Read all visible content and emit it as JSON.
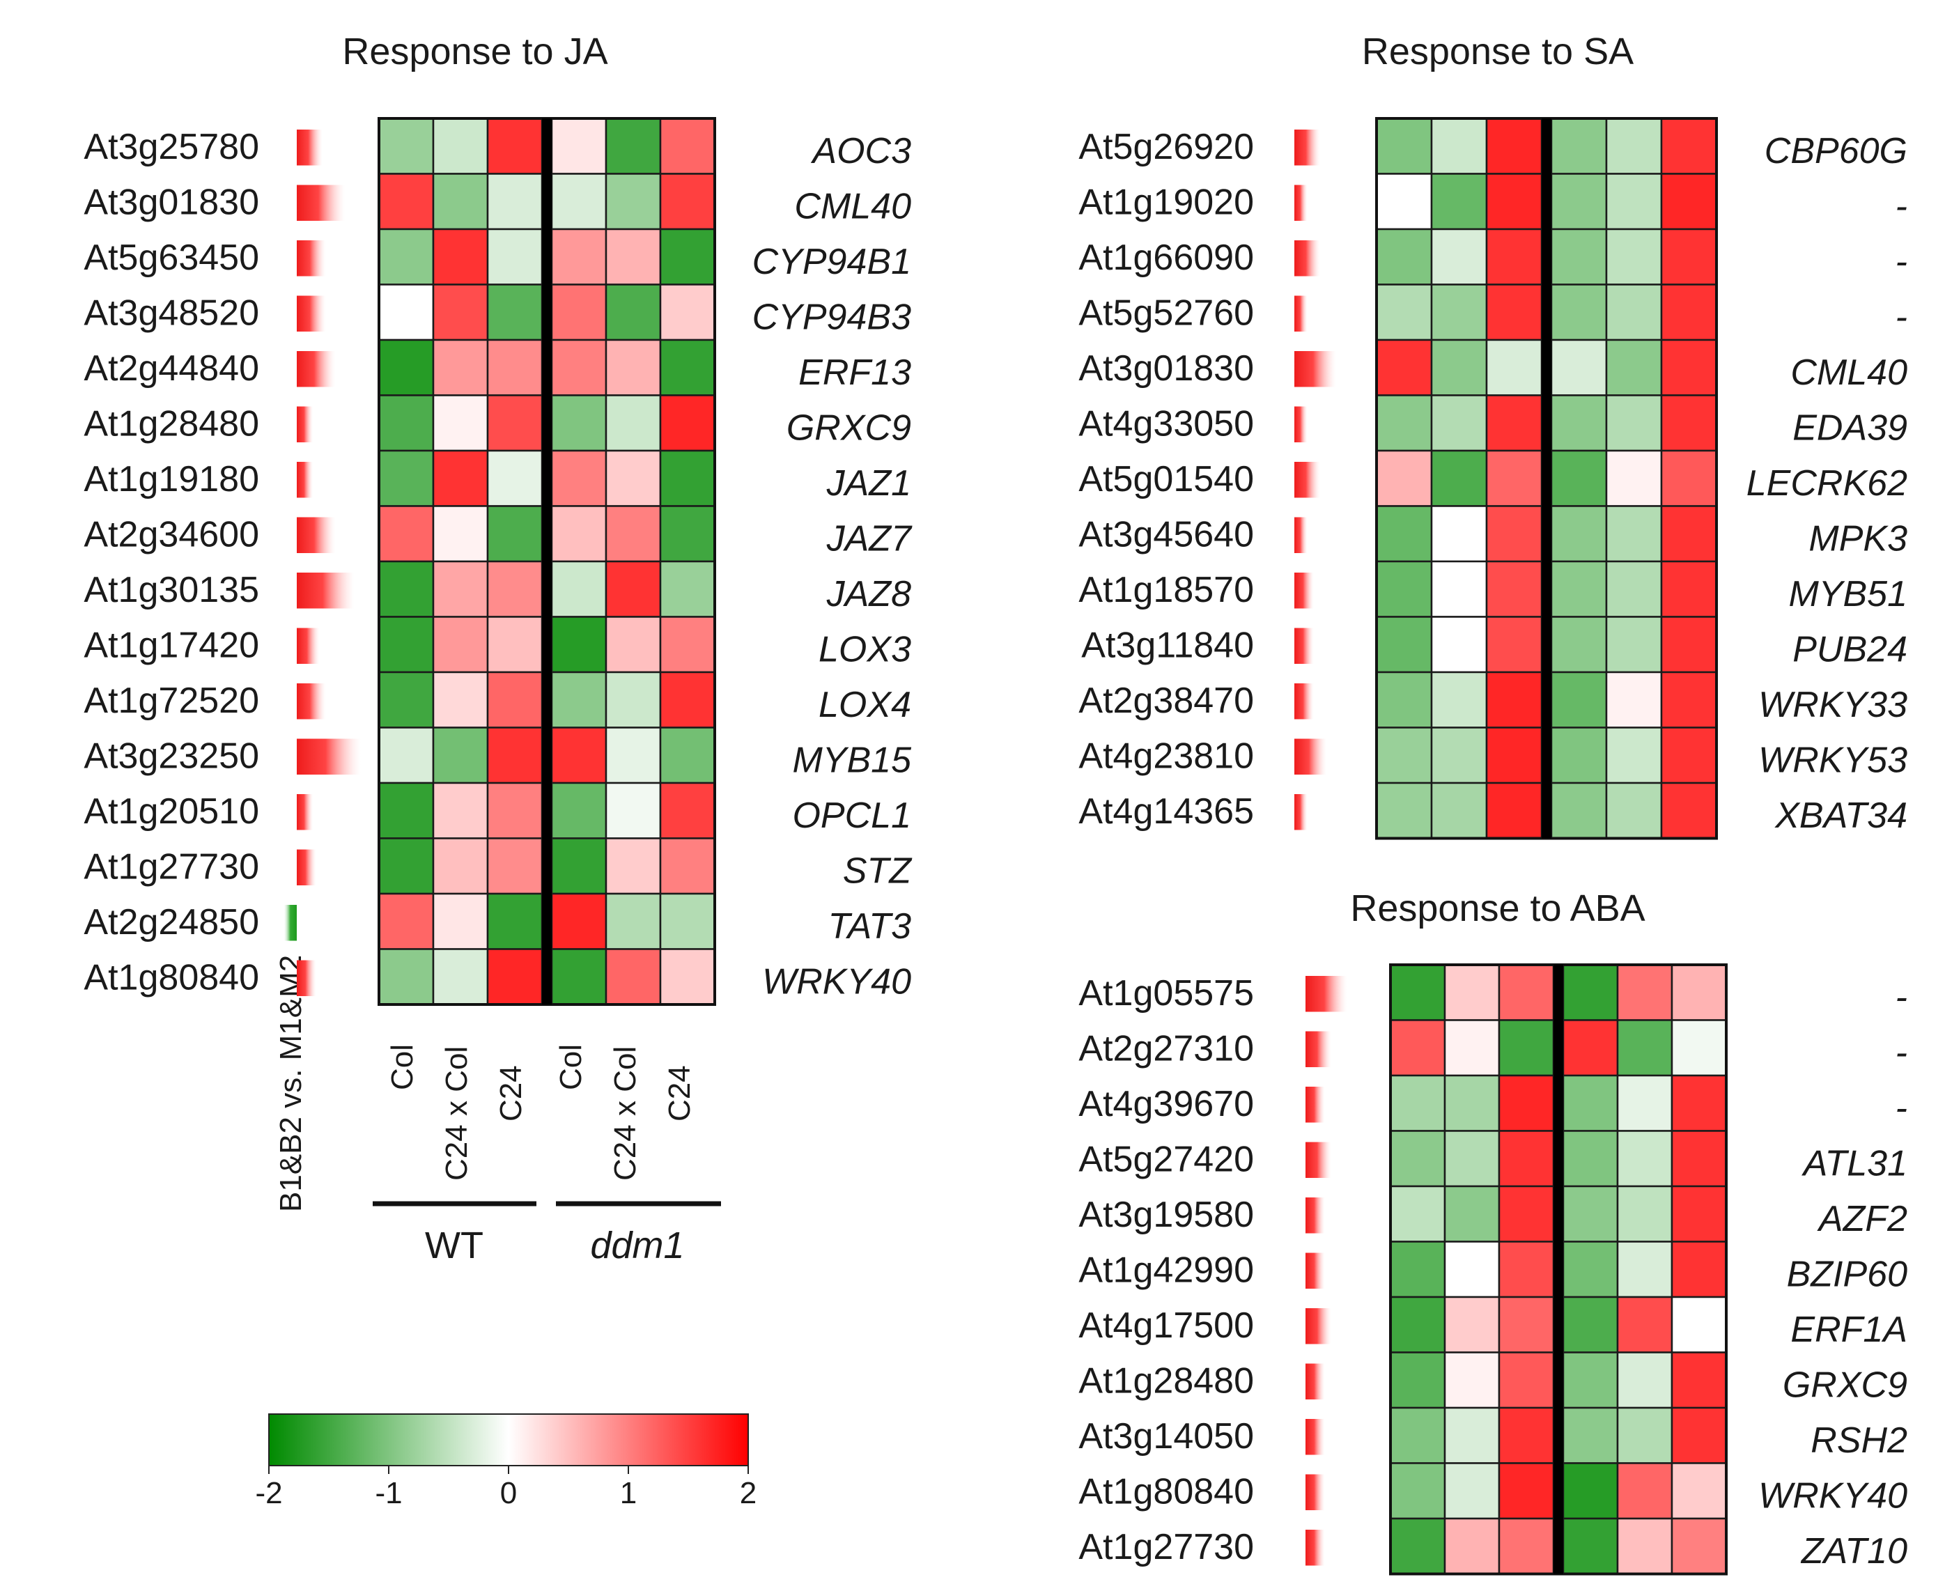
{
  "chart_data": [
    {
      "type": "heatmap",
      "title": "Response to JA",
      "columns": [
        "Col",
        "C24 x Col",
        "C24",
        "Col",
        "C24 x Col",
        "C24"
      ],
      "column_groups": [
        {
          "label": "WT",
          "italic": false,
          "columns": [
            0,
            1,
            2
          ]
        },
        {
          "label": "ddm1",
          "italic": true,
          "columns": [
            3,
            4,
            5
          ]
        }
      ],
      "side_bar_label": "B1&B2 vs. M1&M2",
      "rows": [
        {
          "locus": "At3g25780",
          "gene": "AOC3",
          "bar": 0.8,
          "values": [
            -0.8,
            -0.4,
            1.6,
            0.2,
            -1.5,
            1.2
          ]
        },
        {
          "locus": "At3g01830",
          "gene": "CML40",
          "bar": 1.5,
          "values": [
            1.5,
            -0.9,
            -0.3,
            -0.3,
            -0.8,
            1.5
          ]
        },
        {
          "locus": "At5g63450",
          "gene": "CYP94B1",
          "bar": 0.9,
          "values": [
            -0.9,
            1.6,
            -0.3,
            0.8,
            0.6,
            -1.6
          ]
        },
        {
          "locus": "At3g48520",
          "gene": "CYP94B3",
          "bar": 0.9,
          "values": [
            0.0,
            1.4,
            -1.3,
            1.1,
            -1.4,
            0.4
          ]
        },
        {
          "locus": "At2g44840",
          "gene": "ERF13",
          "bar": 1.2,
          "values": [
            -1.7,
            0.8,
            0.9,
            1.0,
            0.6,
            -1.6
          ]
        },
        {
          "locus": "At1g28480",
          "gene": "GRXC9",
          "bar": 0.5,
          "values": [
            -1.4,
            0.1,
            1.4,
            -1.0,
            -0.4,
            1.7
          ]
        },
        {
          "locus": "At1g19180",
          "gene": "JAZ1",
          "bar": 0.5,
          "values": [
            -1.3,
            1.6,
            -0.2,
            1.0,
            0.4,
            -1.6
          ]
        },
        {
          "locus": "At2g34600",
          "gene": "JAZ7",
          "bar": 1.2,
          "values": [
            1.2,
            0.1,
            -1.4,
            0.5,
            1.0,
            -1.5
          ]
        },
        {
          "locus": "At1g30135",
          "gene": "JAZ8",
          "bar": 1.8,
          "values": [
            -1.6,
            0.7,
            0.9,
            -0.4,
            1.6,
            -0.8
          ]
        },
        {
          "locus": "At1g17420",
          "gene": "LOX3",
          "bar": 0.7,
          "values": [
            -1.6,
            0.8,
            0.5,
            -1.7,
            0.5,
            1.0
          ]
        },
        {
          "locus": "At1g72520",
          "gene": "LOX4",
          "bar": 0.9,
          "values": [
            -1.5,
            0.3,
            1.2,
            -0.9,
            -0.4,
            1.6
          ]
        },
        {
          "locus": "At3g23250",
          "gene": "MYB15",
          "bar": 2.0,
          "values": [
            -0.3,
            -1.1,
            1.6,
            1.6,
            -0.2,
            -1.1
          ]
        },
        {
          "locus": "At1g20510",
          "gene": "OPCL1",
          "bar": 0.5,
          "values": [
            -1.6,
            0.4,
            1.0,
            -1.2,
            -0.1,
            1.5
          ]
        },
        {
          "locus": "At1g27730",
          "gene": "STZ",
          "bar": 0.6,
          "values": [
            -1.6,
            0.5,
            0.9,
            -1.6,
            0.4,
            1.0
          ]
        },
        {
          "locus": "At2g24850",
          "gene": "TAT3",
          "bar": -0.4,
          "values": [
            1.2,
            0.2,
            -1.6,
            1.7,
            -0.6,
            -0.6
          ]
        },
        {
          "locus": "At1g80840",
          "gene": "WRKY40",
          "bar": 0.6,
          "values": [
            -0.9,
            -0.3,
            1.7,
            -1.6,
            1.2,
            0.4
          ]
        }
      ]
    },
    {
      "type": "heatmap",
      "title": "Response to SA",
      "rows": [
        {
          "locus": "At5g26920",
          "gene": "CBP60G",
          "bar": 0.8,
          "values": [
            -1.0,
            -0.4,
            1.7,
            -0.9,
            -0.5,
            1.6
          ]
        },
        {
          "locus": "At1g19020",
          "gene": "-",
          "bar": 0.4,
          "values": [
            0.0,
            -1.2,
            1.7,
            -0.9,
            -0.5,
            1.7
          ]
        },
        {
          "locus": "At1g66090",
          "gene": "-",
          "bar": 0.8,
          "values": [
            -1.0,
            -0.3,
            1.6,
            -0.9,
            -0.5,
            1.6
          ]
        },
        {
          "locus": "At5g52760",
          "gene": "-",
          "bar": 0.4,
          "values": [
            -0.6,
            -0.8,
            1.6,
            -0.9,
            -0.6,
            1.6
          ]
        },
        {
          "locus": "At3g01830",
          "gene": "CML40",
          "bar": 1.3,
          "values": [
            1.6,
            -0.9,
            -0.3,
            -0.3,
            -0.9,
            1.6
          ]
        },
        {
          "locus": "At4g33050",
          "gene": "EDA39",
          "bar": 0.4,
          "values": [
            -0.9,
            -0.6,
            1.6,
            -0.9,
            -0.6,
            1.6
          ]
        },
        {
          "locus": "At5g01540",
          "gene": "LECRK62",
          "bar": 0.8,
          "values": [
            0.6,
            -1.4,
            1.2,
            -1.3,
            0.1,
            1.3
          ]
        },
        {
          "locus": "At3g45640",
          "gene": "MPK3",
          "bar": 0.4,
          "values": [
            -1.2,
            0.0,
            1.4,
            -0.9,
            -0.6,
            1.6
          ]
        },
        {
          "locus": "At1g18570",
          "gene": "MYB51",
          "bar": 0.6,
          "values": [
            -1.2,
            0.0,
            1.4,
            -0.9,
            -0.6,
            1.6
          ]
        },
        {
          "locus": "At3g11840",
          "gene": "PUB24",
          "bar": 0.6,
          "values": [
            -1.2,
            0.0,
            1.4,
            -0.9,
            -0.6,
            1.6
          ]
        },
        {
          "locus": "At2g38470",
          "gene": "WRKY33",
          "bar": 0.6,
          "values": [
            -1.0,
            -0.4,
            1.7,
            -1.2,
            0.1,
            1.6
          ]
        },
        {
          "locus": "At4g23810",
          "gene": "WRKY53",
          "bar": 1.0,
          "values": [
            -0.8,
            -0.6,
            1.7,
            -1.0,
            -0.4,
            1.6
          ]
        },
        {
          "locus": "At4g14365",
          "gene": "XBAT34",
          "bar": 0.4,
          "values": [
            -0.8,
            -0.7,
            1.7,
            -0.9,
            -0.6,
            1.6
          ]
        }
      ]
    },
    {
      "type": "heatmap",
      "title": "Response to ABA",
      "rows": [
        {
          "locus": "At1g05575",
          "gene": "-",
          "bar": 1.3,
          "values": [
            -1.6,
            0.4,
            1.2,
            -1.6,
            1.1,
            0.6
          ]
        },
        {
          "locus": "At2g27310",
          "gene": "-",
          "bar": 0.8,
          "values": [
            1.3,
            0.1,
            -1.5,
            1.6,
            -1.3,
            -0.1
          ]
        },
        {
          "locus": "At4g39670",
          "gene": "-",
          "bar": 0.6,
          "values": [
            -0.7,
            -0.7,
            1.7,
            -1.0,
            -0.2,
            1.6
          ]
        },
        {
          "locus": "At5g27420",
          "gene": "ATL31",
          "bar": 0.8,
          "values": [
            -0.9,
            -0.6,
            1.6,
            -1.0,
            -0.4,
            1.6
          ]
        },
        {
          "locus": "At3g19580",
          "gene": "AZF2",
          "bar": 0.6,
          "values": [
            -0.5,
            -0.9,
            1.6,
            -0.9,
            -0.5,
            1.6
          ]
        },
        {
          "locus": "At1g42990",
          "gene": "BZIP60",
          "bar": 0.6,
          "values": [
            -1.3,
            0.0,
            1.4,
            -1.1,
            -0.3,
            1.6
          ]
        },
        {
          "locus": "At4g17500",
          "gene": "ERF1A",
          "bar": 0.8,
          "values": [
            -1.5,
            0.4,
            1.2,
            -1.4,
            1.4,
            0.0
          ]
        },
        {
          "locus": "At1g28480",
          "gene": "GRXC9",
          "bar": 0.6,
          "values": [
            -1.3,
            0.1,
            1.3,
            -1.0,
            -0.3,
            1.6
          ]
        },
        {
          "locus": "At3g14050",
          "gene": "RSH2",
          "bar": 0.6,
          "values": [
            -1.0,
            -0.3,
            1.6,
            -0.9,
            -0.6,
            1.6
          ]
        },
        {
          "locus": "At1g80840",
          "gene": "WRKY40",
          "bar": 0.6,
          "values": [
            -1.0,
            -0.3,
            1.7,
            -1.7,
            1.2,
            0.4
          ]
        },
        {
          "locus": "At1g27730",
          "gene": "ZAT10",
          "bar": 0.6,
          "values": [
            -1.5,
            0.6,
            1.1,
            -1.6,
            0.5,
            1.0
          ]
        }
      ]
    }
  ],
  "legend": {
    "min": -2,
    "max": 2,
    "ticks": [
      -2,
      -1,
      0,
      1,
      2
    ],
    "tick_labels": [
      "-2",
      "-1",
      "0",
      "1",
      "2"
    ],
    "low_color": "#008a00",
    "mid_color": "#ffffff",
    "high_color": "#ff0000"
  }
}
